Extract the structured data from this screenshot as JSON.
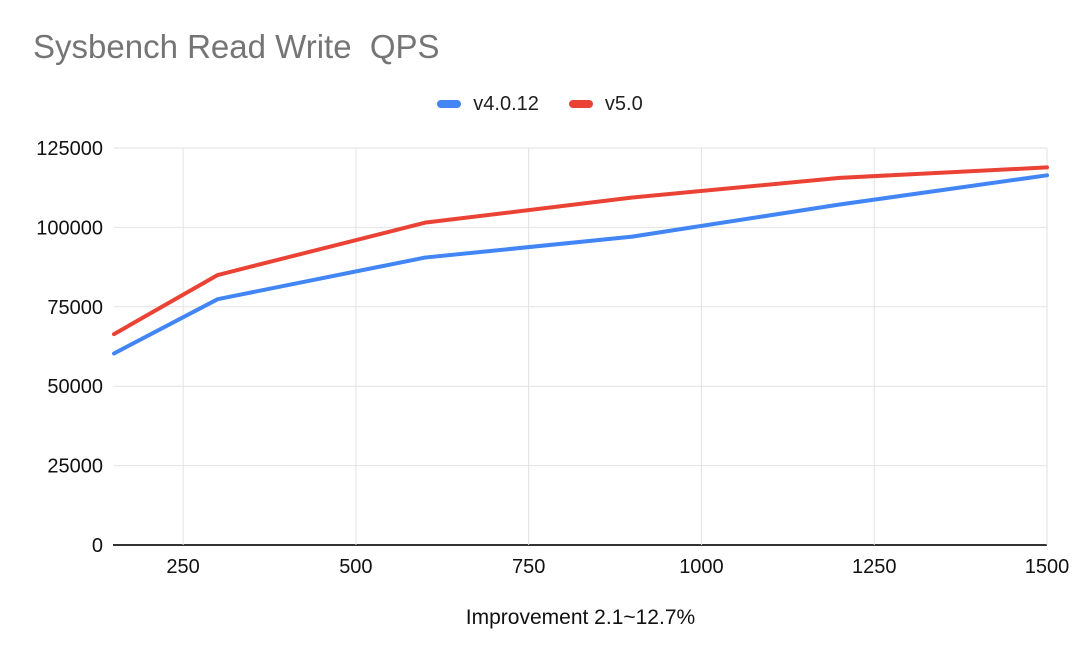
{
  "title": "Sysbench Read Write  QPS",
  "legend": {
    "items": [
      {
        "label": "v4.0.12",
        "color": "#4285F4"
      },
      {
        "label": "v5.0",
        "color": "#EA4335"
      }
    ]
  },
  "caption": "Improvement 2.1~12.7%",
  "colors": {
    "title_text": "#757575",
    "axis_text": "#111111",
    "gridline": "#e2e2e2",
    "baseline": "#333333",
    "background": "#ffffff",
    "series_blue": "#4285F4",
    "series_red": "#EA4335"
  },
  "chart_data": {
    "type": "line",
    "title": "Sysbench Read Write  QPS",
    "x": [
      150,
      300,
      600,
      900,
      1200,
      1500
    ],
    "series": [
      {
        "name": "v4.0.12",
        "color": "#4285F4",
        "values": [
          60300,
          77400,
          90500,
          97100,
          107200,
          116400
        ]
      },
      {
        "name": "v5.0",
        "color": "#EA4335",
        "values": [
          66400,
          85000,
          101500,
          109400,
          115600,
          118900
        ]
      }
    ],
    "xlabel": "",
    "ylabel": "",
    "x_ticks": [
      250,
      500,
      750,
      1000,
      1250,
      1500
    ],
    "y_ticks": [
      0,
      25000,
      50000,
      75000,
      100000,
      125000
    ],
    "xlim": [
      150,
      1500
    ],
    "ylim": [
      0,
      125000
    ],
    "grid": true,
    "legend_position": "top-center",
    "caption": "Improvement 2.1~12.7%",
    "line_width": 4
  }
}
